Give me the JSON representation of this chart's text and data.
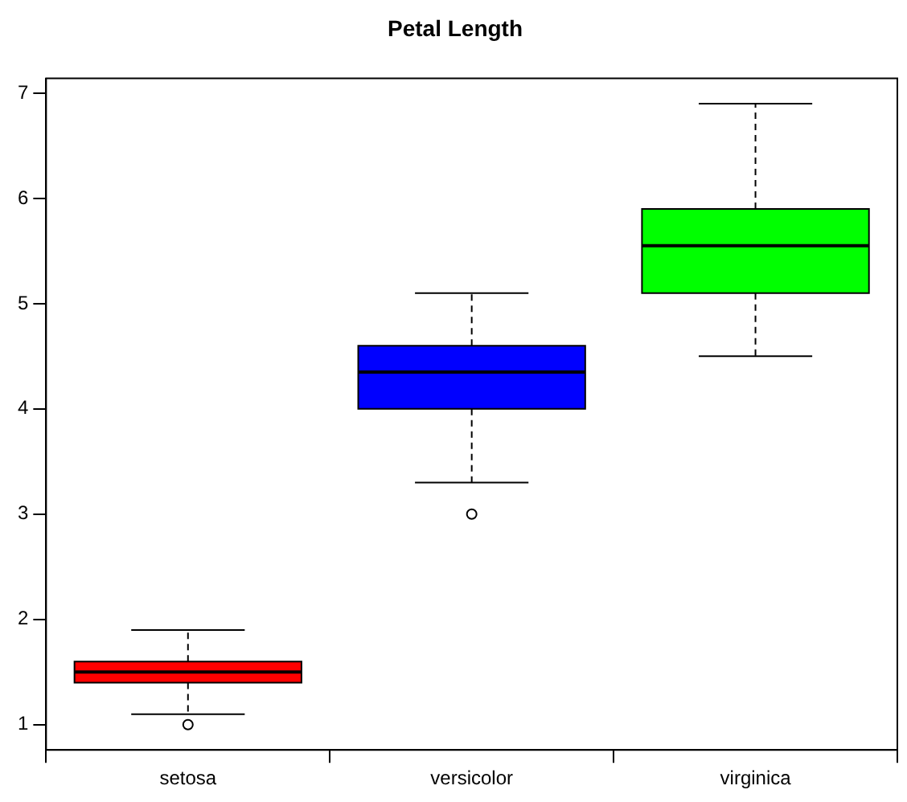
{
  "chart_data": {
    "type": "box",
    "title": "Petal Length",
    "categories": [
      "setosa",
      "versicolor",
      "virginica"
    ],
    "colors": [
      "#ff0000",
      "#0000ff",
      "#00ff00"
    ],
    "boxes": [
      {
        "low": 1.1,
        "q1": 1.4,
        "median": 1.5,
        "q3": 1.6,
        "high": 1.9,
        "outliers": [
          1.0
        ]
      },
      {
        "low": 3.3,
        "q1": 4.0,
        "median": 4.35,
        "q3": 4.6,
        "high": 5.1,
        "outliers": [
          3.0
        ]
      },
      {
        "low": 4.5,
        "q1": 5.1,
        "median": 5.55,
        "q3": 5.9,
        "high": 6.9
      }
    ],
    "ylim": [
      0.76,
      7.14
    ],
    "yticks": [
      1,
      2,
      3,
      4,
      5,
      6,
      7
    ],
    "grid": false,
    "legend": false
  }
}
